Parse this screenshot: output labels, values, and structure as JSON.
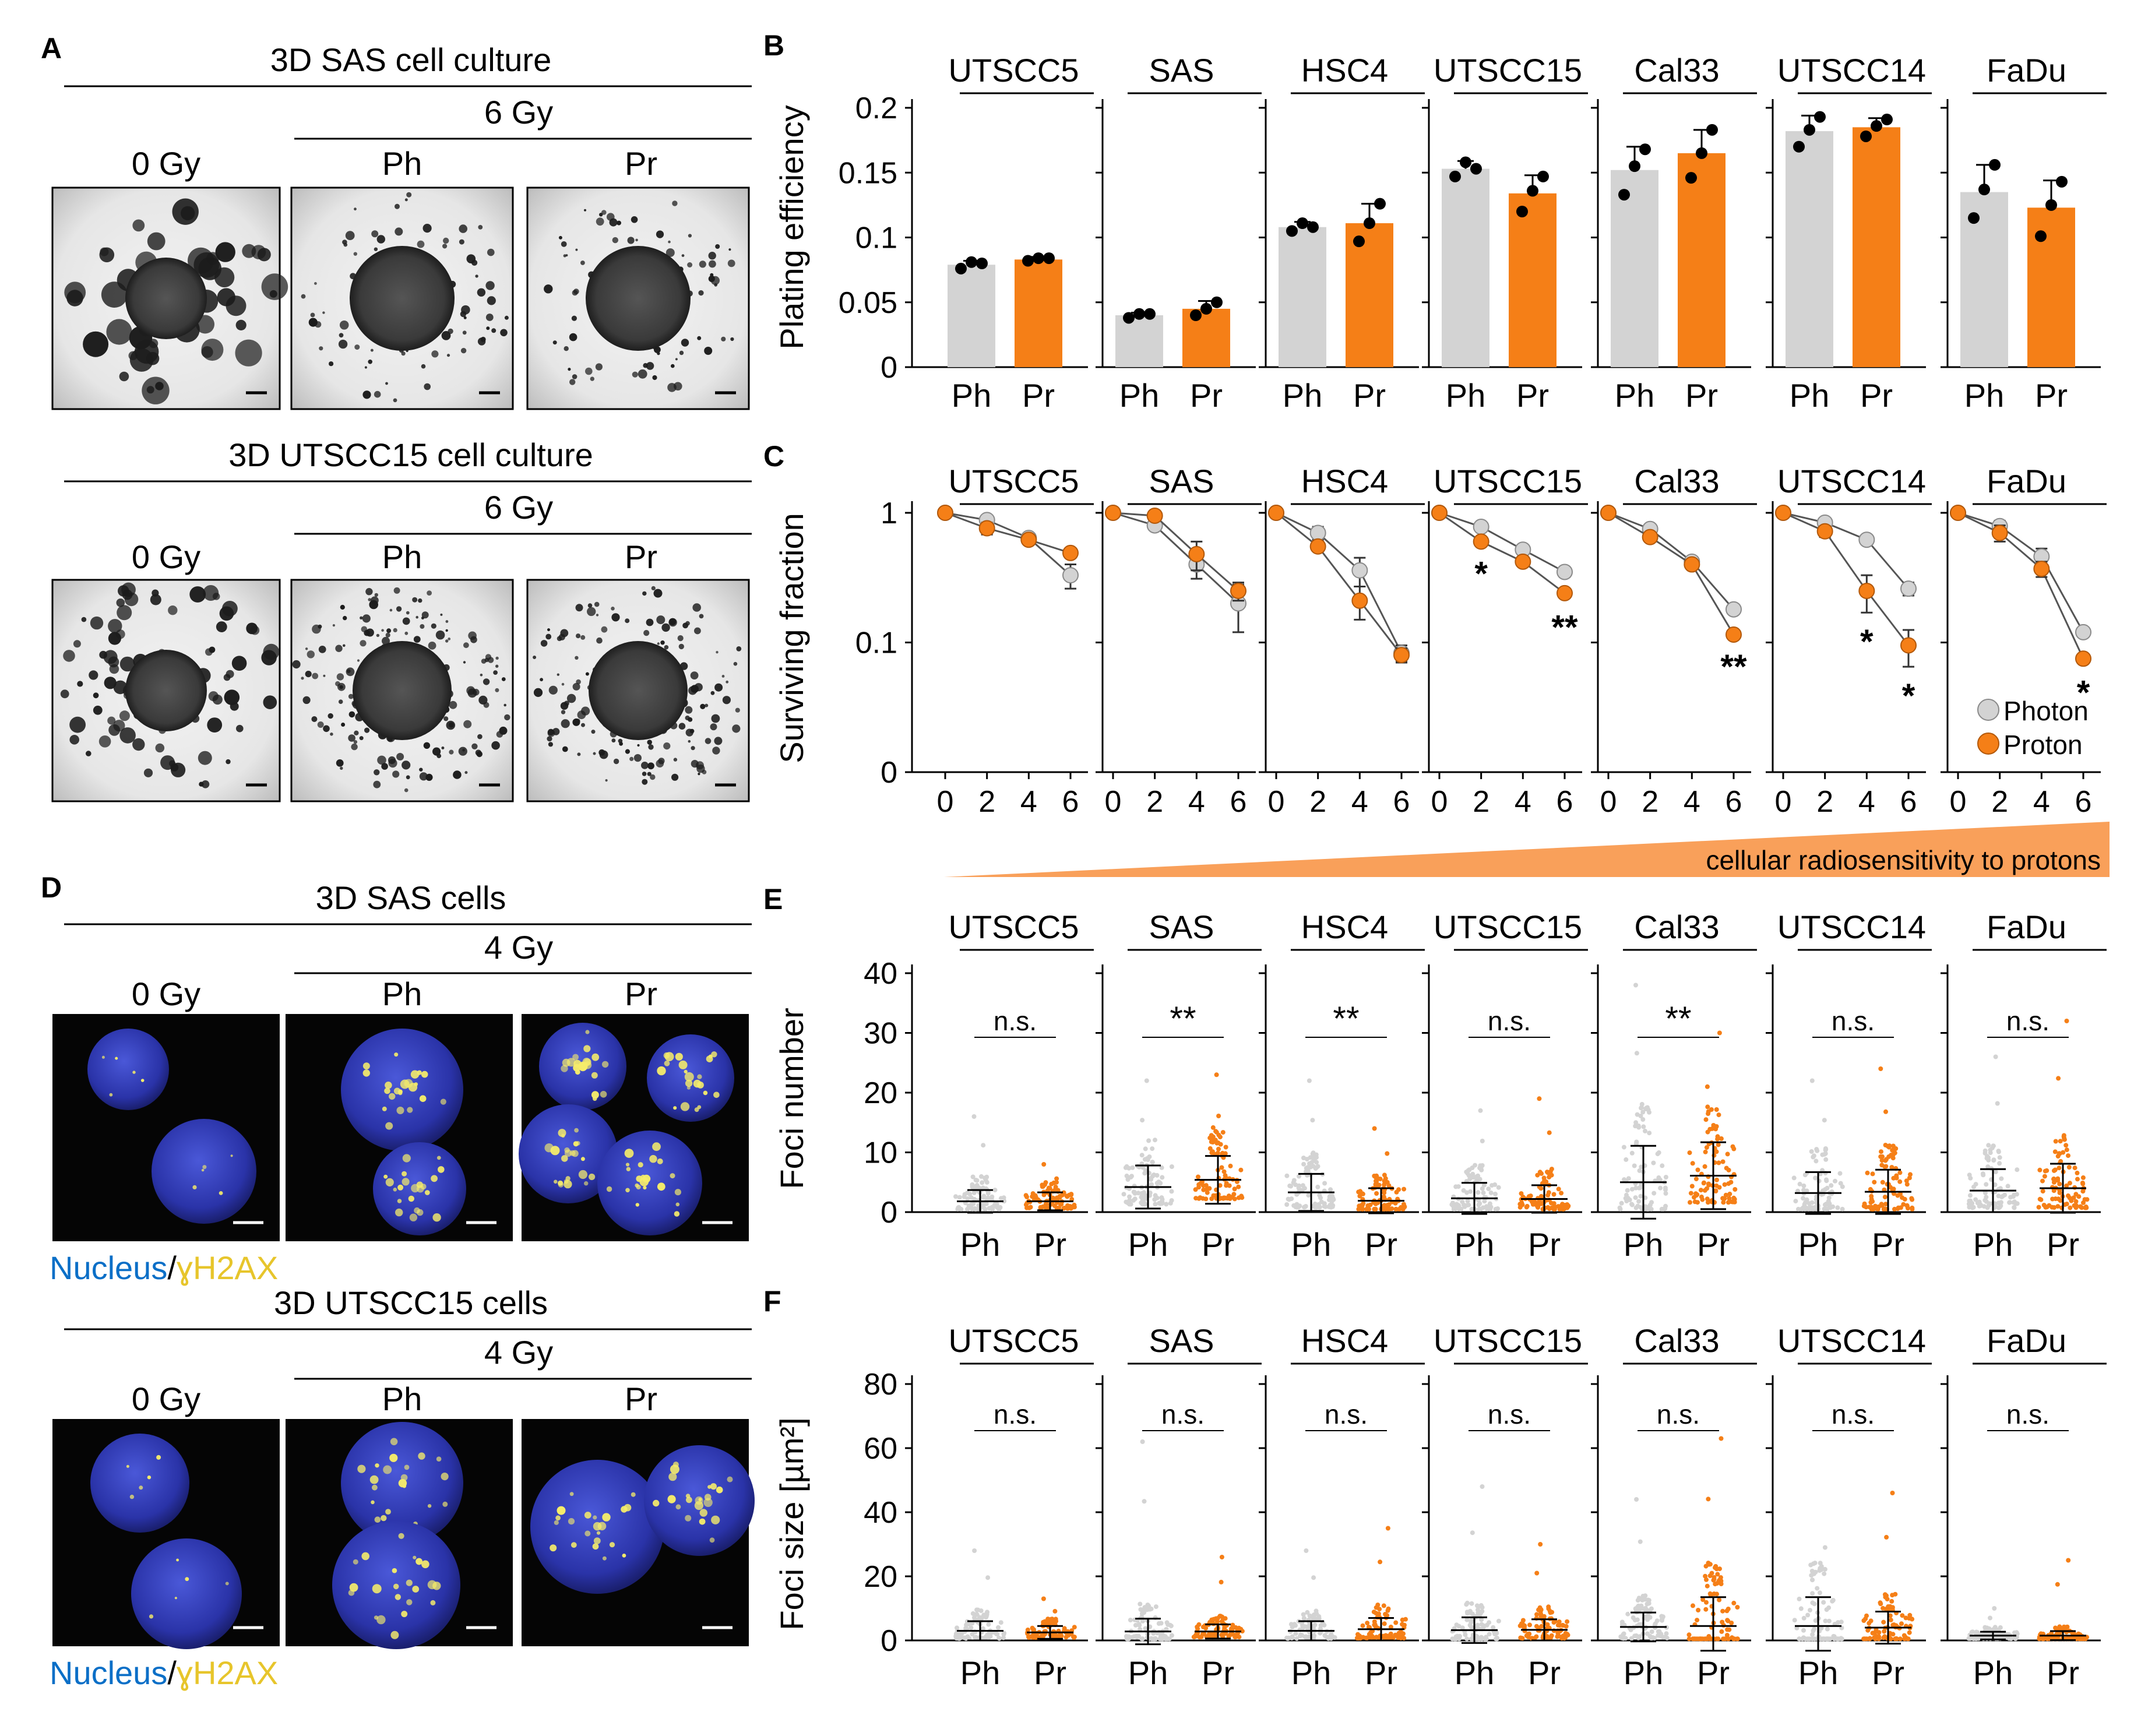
{
  "lines": [
    "UTSCC5",
    "SAS",
    "HSC4",
    "UTSCC15",
    "Cal33",
    "UTSCC14",
    "FaDu"
  ],
  "colors": {
    "photon": "#d3d3d3",
    "proton": "#f57f17",
    "nucleus_label": "#0b6fc7",
    "h2ax_label": "#e7c52b",
    "bar_edge": "#000000"
  },
  "panel_A": {
    "letter": "A",
    "rows": [
      {
        "title": "3D SAS cell culture",
        "dose": "6 Gy",
        "labels": [
          "0 Gy",
          "Ph",
          "Pr"
        ]
      },
      {
        "title": "3D UTSCC15 cell culture",
        "dose": "6 Gy",
        "labels": [
          "0 Gy",
          "Ph",
          "Pr"
        ]
      }
    ]
  },
  "panel_D": {
    "letter": "D",
    "rows": [
      {
        "title": "3D SAS cells",
        "dose": "4 Gy",
        "labels": [
          "0 Gy",
          "Ph",
          "Pr"
        ],
        "stain_nucleus": "Nucleus",
        "stain_sep": "/",
        "stain_h2ax": "ɣH2AX"
      },
      {
        "title": "3D UTSCC15 cells",
        "dose": "4 Gy",
        "labels": [
          "0 Gy",
          "Ph",
          "Pr"
        ],
        "stain_nucleus": "Nucleus",
        "stain_sep": "/",
        "stain_h2ax": "ɣH2AX"
      }
    ]
  },
  "panel_B": {
    "letter": "B",
    "ylabel": "Plating efficiency",
    "categories": [
      "Ph",
      "Pr"
    ],
    "yticks": [
      "0",
      "0.05",
      "0.1",
      "0.15",
      "0.2"
    ]
  },
  "panel_C": {
    "letter": "C",
    "ylabel": "Surviving fraction",
    "yticks": [
      "0",
      "0.1",
      "1"
    ],
    "xticks": [
      "0",
      "2",
      "4",
      "6"
    ],
    "legend": [
      "Photon",
      "Proton"
    ],
    "gradient_label": "cellular radiosensitivity to protons"
  },
  "panel_E": {
    "letter": "E",
    "ylabel": "Foci number",
    "categories": [
      "Ph",
      "Pr"
    ],
    "yticks": [
      "0",
      "10",
      "20",
      "30",
      "40"
    ],
    "sig": [
      "n.s.",
      "**",
      "**",
      "n.s.",
      "**",
      "n.s.",
      "n.s."
    ]
  },
  "panel_F": {
    "letter": "F",
    "ylabel": "Foci size [µm²]",
    "categories": [
      "Ph",
      "Pr"
    ],
    "yticks": [
      "0",
      "20",
      "40",
      "60",
      "80"
    ],
    "sig": [
      "n.s.",
      "n.s.",
      "n.s.",
      "n.s.",
      "n.s.",
      "n.s.",
      "n.s."
    ]
  },
  "chart_data": [
    {
      "type": "bar",
      "panel": "B",
      "ylabel": "Plating efficiency",
      "ylim": [
        0,
        0.2
      ],
      "categories": [
        "Ph",
        "Pr"
      ],
      "groups": [
        {
          "line": "UTSCC5",
          "means": [
            0.079,
            0.083
          ],
          "sd": [
            0.003,
            0.002
          ],
          "points": [
            [
              0.076,
              0.081,
              0.08
            ],
            [
              0.082,
              0.084,
              0.084
            ]
          ]
        },
        {
          "line": "SAS",
          "means": [
            0.04,
            0.045
          ],
          "sd": [
            0.002,
            0.006
          ],
          "points": [
            [
              0.038,
              0.041,
              0.041
            ],
            [
              0.04,
              0.045,
              0.05
            ]
          ]
        },
        {
          "line": "HSC4",
          "means": [
            0.108,
            0.111
          ],
          "sd": [
            0.004,
            0.015
          ],
          "points": [
            [
              0.105,
              0.111,
              0.108
            ],
            [
              0.097,
              0.111,
              0.126
            ]
          ]
        },
        {
          "line": "UTSCC15",
          "means": [
            0.153,
            0.134
          ],
          "sd": [
            0.006,
            0.014
          ],
          "points": [
            [
              0.147,
              0.158,
              0.153
            ],
            [
              0.12,
              0.136,
              0.147
            ]
          ]
        },
        {
          "line": "Cal33",
          "means": [
            0.152,
            0.165
          ],
          "sd": [
            0.018,
            0.018
          ],
          "points": [
            [
              0.133,
              0.155,
              0.168
            ],
            [
              0.146,
              0.165,
              0.183
            ]
          ]
        },
        {
          "line": "UTSCC14",
          "means": [
            0.182,
            0.185
          ],
          "sd": [
            0.012,
            0.007
          ],
          "points": [
            [
              0.17,
              0.183,
              0.193
            ],
            [
              0.178,
              0.186,
              0.191
            ]
          ]
        },
        {
          "line": "FaDu",
          "means": [
            0.135,
            0.123
          ],
          "sd": [
            0.021,
            0.021
          ],
          "points": [
            [
              0.115,
              0.137,
              0.156
            ],
            [
              0.101,
              0.125,
              0.143
            ]
          ]
        }
      ]
    },
    {
      "type": "line",
      "panel": "C",
      "ylabel": "Surviving fraction",
      "yscale": "log",
      "ylim": [
        0.01,
        1
      ],
      "x": [
        0,
        2,
        4,
        6
      ],
      "groups": [
        {
          "line": "UTSCC5",
          "series": [
            {
              "name": "Photon",
              "values": [
                1,
                0.88,
                0.64,
                0.33
              ],
              "err": [
                0,
                0.04,
                0.04,
                0.07
              ]
            },
            {
              "name": "Proton",
              "values": [
                1,
                0.76,
                0.62,
                0.49
              ],
              "err": [
                0,
                0.08,
                0.05,
                0.04
              ]
            }
          ],
          "stars": []
        },
        {
          "line": "SAS",
          "series": [
            {
              "name": "Photon",
              "values": [
                1,
                0.8,
                0.4,
                0.2
              ],
              "err": [
                0,
                0.04,
                0.09,
                0.08
              ]
            },
            {
              "name": "Proton",
              "values": [
                1,
                0.95,
                0.48,
                0.25
              ],
              "err": [
                0,
                0.03,
                0.12,
                0.04
              ]
            }
          ],
          "stars": []
        },
        {
          "line": "HSC4",
          "series": [
            {
              "name": "Photon",
              "values": [
                1,
                0.7,
                0.36,
                0.083
              ],
              "err": [
                0,
                0.08,
                0.09,
                0.012
              ]
            },
            {
              "name": "Proton",
              "values": [
                1,
                0.55,
                0.21,
                0.08
              ],
              "err": [
                0,
                0.02,
                0.06,
                0.01
              ]
            }
          ],
          "stars": []
        },
        {
          "line": "UTSCC15",
          "series": [
            {
              "name": "Photon",
              "values": [
                1,
                0.78,
                0.52,
                0.35
              ],
              "err": [
                0,
                0.03,
                0.03,
                0.03
              ]
            },
            {
              "name": "Proton",
              "values": [
                1,
                0.6,
                0.42,
                0.24
              ],
              "err": [
                0,
                0.03,
                0.03,
                0.02
              ]
            }
          ],
          "stars": [
            {
              "x": 2,
              "text": "*"
            },
            {
              "x": 6,
              "text": "**"
            }
          ]
        },
        {
          "line": "Cal33",
          "series": [
            {
              "name": "Photon",
              "values": [
                1,
                0.75,
                0.42,
                0.18
              ],
              "err": [
                0,
                0.03,
                0.03,
                0.01
              ]
            },
            {
              "name": "Proton",
              "values": [
                1,
                0.65,
                0.4,
                0.115
              ],
              "err": [
                0,
                0.02,
                0.03,
                0.006
              ]
            }
          ],
          "stars": [
            {
              "x": 6,
              "text": "**"
            }
          ]
        },
        {
          "line": "UTSCC14",
          "series": [
            {
              "name": "Photon",
              "values": [
                1,
                0.84,
                0.62,
                0.26
              ],
              "err": [
                0,
                0.04,
                0.04,
                0.03
              ]
            },
            {
              "name": "Proton",
              "values": [
                1,
                0.72,
                0.25,
                0.095
              ],
              "err": [
                0,
                0.07,
                0.08,
                0.03
              ]
            }
          ],
          "stars": [
            {
              "x": 4,
              "text": "*"
            },
            {
              "x": 6,
              "text": "*"
            }
          ]
        },
        {
          "line": "FaDu",
          "series": [
            {
              "name": "Photon",
              "values": [
                1,
                0.79,
                0.46,
                0.12
              ],
              "err": [
                0,
                0.08,
                0.07,
                0.01
              ]
            },
            {
              "name": "Proton",
              "values": [
                1,
                0.7,
                0.37,
                0.075
              ],
              "err": [
                0,
                0.1,
                0.05,
                0.006
              ]
            }
          ],
          "stars": [
            {
              "x": 6,
              "text": "*"
            }
          ]
        }
      ]
    },
    {
      "type": "scatter",
      "panel": "E",
      "ylabel": "Foci number",
      "ylim": [
        0,
        40
      ],
      "categories": [
        "Ph",
        "Pr"
      ],
      "groups": [
        {
          "line": "UTSCC5",
          "mean": [
            1.8,
            1.8
          ],
          "sd": [
            1.9,
            1.5
          ],
          "max": [
            16,
            8
          ]
        },
        {
          "line": "SAS",
          "mean": [
            4.2,
            5.4
          ],
          "sd": [
            3.6,
            4.0
          ],
          "max": [
            22,
            23
          ]
        },
        {
          "line": "HSC4",
          "mean": [
            3.3,
            1.9
          ],
          "sd": [
            3.1,
            2.1
          ],
          "max": [
            22,
            14
          ]
        },
        {
          "line": "UTSCC15",
          "mean": [
            2.3,
            2.2
          ],
          "sd": [
            2.6,
            2.3
          ],
          "max": [
            17,
            19
          ]
        },
        {
          "line": "Cal33",
          "mean": [
            5.0,
            6.1
          ],
          "sd": [
            6.1,
            5.6
          ],
          "max": [
            38,
            30
          ]
        },
        {
          "line": "UTSCC14",
          "mean": [
            3.2,
            3.4
          ],
          "sd": [
            3.5,
            3.7
          ],
          "max": [
            22,
            24
          ]
        },
        {
          "line": "FaDu",
          "mean": [
            3.6,
            4.0
          ],
          "sd": [
            3.6,
            4.1
          ],
          "max": [
            26,
            32
          ]
        }
      ]
    },
    {
      "type": "scatter",
      "panel": "F",
      "ylabel": "Foci size [µm²]",
      "ylim": [
        0,
        80
      ],
      "categories": [
        "Ph",
        "Pr"
      ],
      "groups": [
        {
          "line": "UTSCC5",
          "mean": [
            3,
            2.5
          ],
          "sd": [
            3,
            2
          ],
          "max": [
            28,
            13
          ]
        },
        {
          "line": "SAS",
          "mean": [
            2.8,
            2.8
          ],
          "sd": [
            4,
            2.2
          ],
          "max": [
            62,
            26
          ]
        },
        {
          "line": "HSC4",
          "mean": [
            3,
            3.5
          ],
          "sd": [
            3,
            3.5
          ],
          "max": [
            28,
            35
          ]
        },
        {
          "line": "UTSCC15",
          "mean": [
            3.2,
            3.3
          ],
          "sd": [
            4,
            3.3
          ],
          "max": [
            48,
            30
          ]
        },
        {
          "line": "Cal33",
          "mean": [
            4.2,
            4.5
          ],
          "sd": [
            4.5,
            9
          ],
          "max": [
            44,
            63
          ]
        },
        {
          "line": "UTSCC14",
          "mean": [
            4.5,
            4
          ],
          "sd": [
            9,
            5
          ],
          "max": [
            29,
            46
          ]
        },
        {
          "line": "FaDu",
          "mean": [
            1.5,
            1.5
          ],
          "sd": [
            1.2,
            1.4
          ],
          "max": [
            10,
            25
          ]
        }
      ]
    }
  ]
}
